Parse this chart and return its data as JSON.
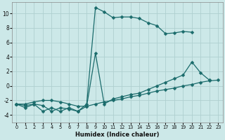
{
  "xlabel": "Humidex (Indice chaleur)",
  "background_color": "#cce8e8",
  "grid_color": "#afd0d0",
  "line_color": "#1a6b6b",
  "xlim": [
    -0.5,
    23.5
  ],
  "ylim": [
    -5.0,
    11.5
  ],
  "xticks": [
    0,
    1,
    2,
    3,
    4,
    5,
    6,
    7,
    8,
    9,
    10,
    11,
    12,
    13,
    14,
    15,
    16,
    17,
    18,
    19,
    20,
    21,
    22,
    23
  ],
  "yticks": [
    -4,
    -2,
    0,
    2,
    4,
    6,
    8,
    10
  ],
  "line1_x": [
    0,
    1,
    2,
    3,
    4,
    5,
    6,
    7,
    8,
    9,
    10,
    11,
    12,
    13,
    14,
    15,
    16,
    17,
    18,
    19,
    20
  ],
  "line1_y": [
    -2.5,
    -3.0,
    -2.5,
    -3.5,
    -3.0,
    -3.5,
    -3.0,
    -3.5,
    -2.5,
    10.8,
    10.2,
    9.4,
    9.5,
    9.5,
    9.3,
    8.7,
    8.3,
    7.2,
    7.3,
    7.5,
    7.4
  ],
  "line2_x": [
    0,
    1,
    2,
    3,
    4,
    5,
    6,
    7,
    8,
    9,
    10,
    11,
    12,
    13,
    14,
    15,
    16,
    17,
    18,
    19,
    20,
    21,
    22
  ],
  "line2_y": [
    -2.5,
    -2.7,
    -2.5,
    -2.7,
    -3.5,
    -3.0,
    -3.2,
    -3.5,
    -2.8,
    4.5,
    -2.5,
    -1.8,
    -1.5,
    -1.2,
    -1.0,
    -0.5,
    0.0,
    0.5,
    1.0,
    1.5,
    3.3,
    1.8,
    0.8
  ],
  "line3_x": [
    0,
    1,
    2,
    3,
    4,
    5,
    6,
    7,
    8,
    9,
    10,
    11,
    12,
    13,
    14,
    15,
    16,
    17,
    18,
    19,
    20,
    21,
    22,
    23
  ],
  "line3_y": [
    -2.5,
    -2.5,
    -2.2,
    -2.0,
    -2.0,
    -2.2,
    -2.5,
    -2.8,
    -2.8,
    -2.5,
    -2.2,
    -2.0,
    -1.8,
    -1.5,
    -1.3,
    -1.0,
    -0.7,
    -0.5,
    -0.3,
    0.0,
    0.2,
    0.5,
    0.7,
    0.8
  ]
}
